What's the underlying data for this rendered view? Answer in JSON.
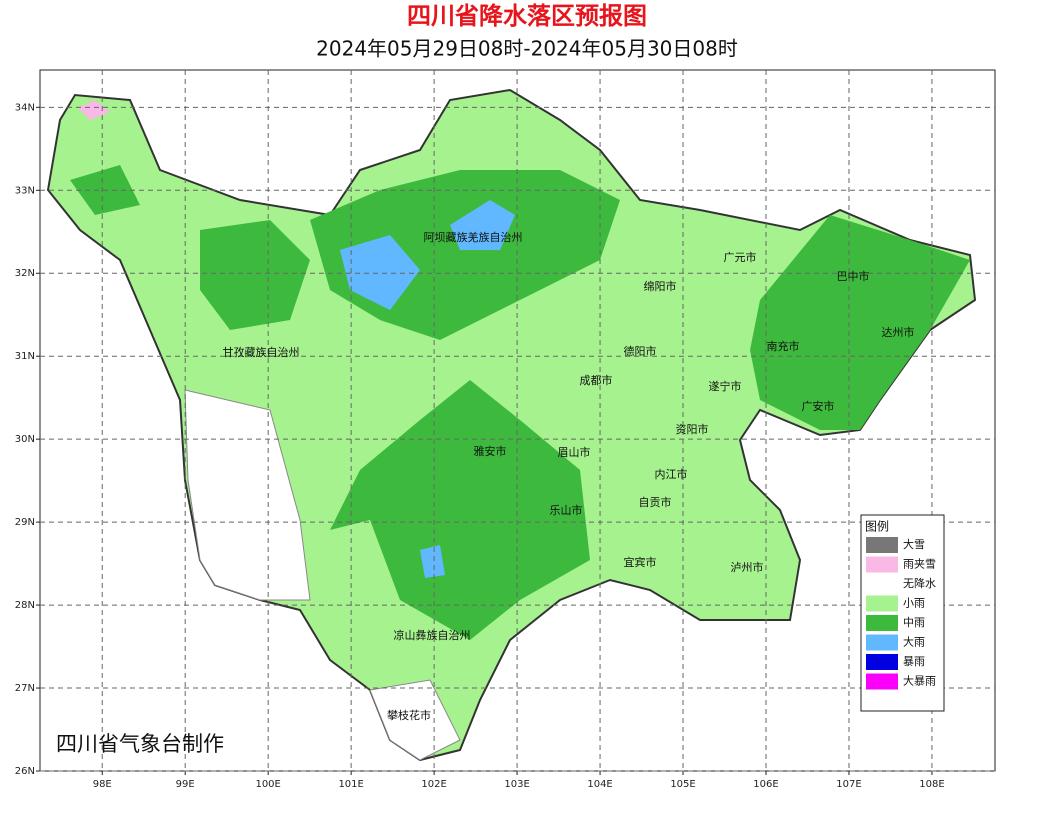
{
  "title": "四川省降水落区预报图",
  "subtitle": "2024年05月29日08时-2024年05月30日08时",
  "credit": "四川省气象台制作",
  "map": {
    "xlim": [
      97.25,
      108.76
    ],
    "ylim": [
      26,
      34.45
    ],
    "xticks": [
      {
        "value": 98,
        "label": "98E"
      },
      {
        "value": 99,
        "label": "99E"
      },
      {
        "value": 100,
        "label": "100E"
      },
      {
        "value": 101,
        "label": "101E"
      },
      {
        "value": 102,
        "label": "102E"
      },
      {
        "value": 103,
        "label": "103E"
      },
      {
        "value": 104,
        "label": "104E"
      },
      {
        "value": 105,
        "label": "105E"
      },
      {
        "value": 106,
        "label": "106E"
      },
      {
        "value": 107,
        "label": "107E"
      },
      {
        "value": 108,
        "label": "108E"
      }
    ],
    "yticks": [
      {
        "value": 26,
        "label": "26N"
      },
      {
        "value": 27,
        "label": "27N"
      },
      {
        "value": 28,
        "label": "28N"
      },
      {
        "value": 29,
        "label": "29N"
      },
      {
        "value": 30,
        "label": "30N"
      },
      {
        "value": 31,
        "label": "31N"
      },
      {
        "value": 32,
        "label": "32N"
      },
      {
        "value": 33,
        "label": "33N"
      },
      {
        "value": 34,
        "label": "34N"
      }
    ],
    "grid": true
  },
  "cities": [
    "阿坝藏族羌族自治州",
    "广元市",
    "巴中市",
    "绵阳市",
    "达州市",
    "甘孜藏族自治州",
    "德阳市",
    "南充市",
    "成都市",
    "遂宁市",
    "广安市",
    "资阳市",
    "雅安市",
    "眉山市",
    "内江市",
    "乐山市",
    "自贡市",
    "宜宾市",
    "泸州市",
    "凉山彝族自治州",
    "攀枝花市"
  ],
  "legend": {
    "title": "图例",
    "items": [
      {
        "name": "大雪",
        "color": "#777777"
      },
      {
        "name": "雨夹雪",
        "color": "#f9b8e6"
      },
      {
        "name": "无降水",
        "color": "#ffffff"
      },
      {
        "name": "小雨",
        "color": "#a6f28f"
      },
      {
        "name": "中雨",
        "color": "#3dba3d"
      },
      {
        "name": "大雨",
        "color": "#61b8ff"
      },
      {
        "name": "暴雨",
        "color": "#0000e1"
      },
      {
        "name": "大暴雨",
        "color": "#fa00fa"
      }
    ]
  }
}
